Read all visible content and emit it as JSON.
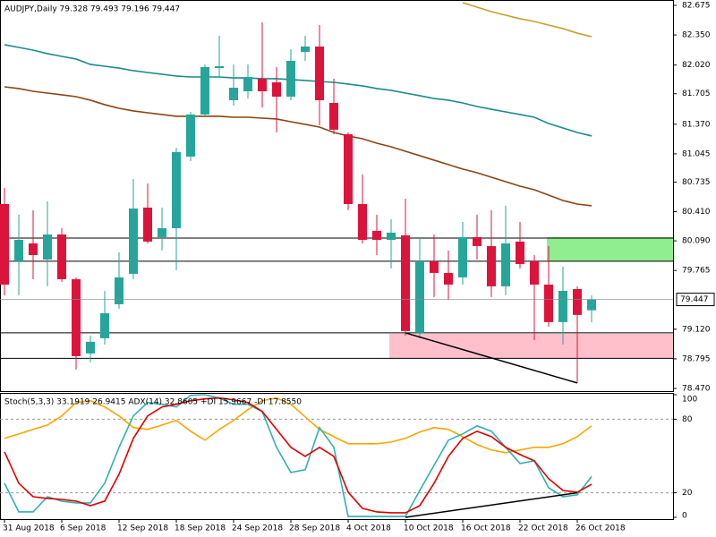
{
  "chart_data": [
    {
      "type": "candlestick",
      "title": "AUDJPY,Daily  79.328 79.493 79.196 79.447",
      "ylim": [
        78.47,
        82.675
      ],
      "yticks": [
        82.675,
        {
          "value": 82.35,
          "label": "82.350"
        },
        {
          "value": 82.02,
          "label": "82.020"
        },
        81.705,
        {
          "value": 81.37,
          "label": "81.370"
        },
        81.045,
        80.735,
        {
          "value": 80.41,
          "label": "80.410"
        },
        {
          "value": 80.09,
          "label": "80.090"
        },
        79.765,
        {
          "value": 79.12,
          "label": "79.120"
        },
        78.795,
        {
          "value": 78.47,
          "label": "78.470"
        }
      ],
      "last_price": 79.447,
      "up_color": "#26a69a",
      "down_color": "#dc143c",
      "open": [
        80.494,
        79.866,
        80.062,
        79.885,
        80.16,
        79.669,
        78.854,
        79.021,
        79.394,
        79.728,
        80.455,
        80.131,
        80.229,
        81.015,
        81.477,
        81.987,
        81.634,
        81.732,
        81.87,
        81.83,
        81.673,
        82.164,
        82.223,
        81.604,
        81.261,
        80.494,
        80.2,
        80.101,
        80.151,
        79.08,
        79.866,
        79.738,
        79.689,
        80.131,
        80.033,
        79.591,
        80.082,
        79.866,
        79.61,
        79.198,
        79.561,
        79.328
      ],
      "high": [
        80.671,
        80.377,
        80.426,
        80.524,
        80.229,
        79.689,
        79.051,
        79.541,
        79.964,
        80.769,
        80.72,
        80.455,
        81.113,
        81.506,
        82.027,
        82.341,
        82.027,
        82.027,
        82.488,
        81.997,
        82.194,
        82.341,
        82.459,
        81.87,
        81.28,
        80.819,
        80.377,
        80.327,
        80.553,
        80.131,
        80.16,
        79.984,
        80.298,
        80.377,
        80.426,
        80.475,
        80.298,
        79.934,
        80.033,
        79.807,
        79.591,
        79.493
      ],
      "low": [
        79.492,
        79.492,
        79.669,
        79.591,
        79.64,
        78.677,
        78.756,
        78.952,
        79.345,
        79.669,
        80.062,
        79.984,
        79.767,
        80.966,
        81.457,
        81.899,
        81.575,
        81.653,
        81.555,
        81.28,
        81.634,
        82.066,
        81.359,
        81.261,
        80.426,
        80.062,
        79.934,
        79.787,
        79.051,
        79.021,
        79.473,
        79.443,
        79.61,
        79.885,
        79.473,
        79.492,
        79.787,
        79.001,
        79.149,
        78.952,
        78.53,
        79.196
      ],
      "close": [
        79.61,
        80.101,
        79.934,
        80.16,
        79.669,
        78.824,
        78.982,
        79.296,
        79.689,
        80.445,
        80.082,
        80.229,
        81.064,
        81.477,
        81.997,
        82.007,
        81.771,
        81.889,
        81.732,
        81.673,
        82.066,
        82.223,
        81.634,
        81.31,
        80.494,
        80.101,
        80.101,
        80.18,
        79.1,
        79.866,
        79.738,
        79.61,
        80.131,
        80.033,
        79.591,
        80.062,
        79.836,
        79.61,
        79.198,
        79.541,
        79.277,
        79.447
      ],
      "series": [
        {
          "color": "#c8a02a",
          "values": [
            null,
            null,
            null,
            null,
            null,
            null,
            null,
            null,
            null,
            null,
            null,
            null,
            null,
            null,
            null,
            null,
            null,
            null,
            null,
            null,
            null,
            null,
            null,
            null,
            null,
            null,
            null,
            null,
            null,
            null,
            null,
            null,
            82.704,
            82.655,
            82.606,
            82.567,
            82.528,
            82.498,
            82.459,
            82.42,
            82.37,
            82.331
          ]
        },
        {
          "color": "#1a8c8c",
          "values": [
            82.243,
            82.213,
            82.184,
            82.145,
            82.115,
            82.086,
            82.027,
            82.007,
            81.987,
            81.958,
            81.938,
            81.919,
            81.899,
            81.889,
            81.889,
            81.889,
            81.879,
            81.879,
            81.87,
            81.87,
            81.86,
            81.85,
            81.84,
            81.83,
            81.811,
            81.791,
            81.762,
            81.742,
            81.712,
            81.683,
            81.653,
            81.634,
            81.604,
            81.565,
            81.535,
            81.506,
            81.477,
            81.447,
            81.378,
            81.329,
            81.28,
            81.241
          ]
        },
        {
          "color": "#8b4513",
          "values": [
            81.781,
            81.762,
            81.732,
            81.712,
            81.693,
            81.673,
            81.634,
            81.585,
            81.545,
            81.516,
            81.496,
            81.477,
            81.457,
            81.457,
            81.457,
            81.457,
            81.447,
            81.447,
            81.437,
            81.428,
            81.398,
            81.369,
            81.339,
            81.28,
            81.241,
            81.211,
            81.162,
            81.123,
            81.074,
            81.025,
            80.976,
            80.927,
            80.878,
            80.838,
            80.789,
            80.74,
            80.69,
            80.651,
            80.592,
            80.533,
            80.494,
            80.475
          ]
        }
      ],
      "levels": [
        80.121,
        79.866,
        79.08,
        78.8
      ],
      "zones": [
        {
          "start": 38,
          "low": 79.866,
          "high": 80.131,
          "color": "#90ee90"
        },
        {
          "start": 27,
          "low": 78.8,
          "high": 79.07,
          "color": "#ffc0cb"
        }
      ],
      "trendline": {
        "x": [
          28,
          40
        ],
        "y": [
          79.08,
          78.53
        ]
      }
    },
    {
      "type": "line",
      "title": "Stoch(5,3,3) 33.1919 26.9415  ADX(14) 32.8605 +DI 15.9667 -DI 17.8550",
      "ylim": [
        0,
        100
      ],
      "yticks": [
        0,
        20,
        80,
        100
      ],
      "levels": [
        20,
        80
      ],
      "categories": [
        "31 Aug 2018",
        null,
        null,
        null,
        "6 Sep 2018",
        null,
        null,
        null,
        "12 Sep 2018",
        null,
        null,
        null,
        "18 Sep 2018",
        null,
        null,
        null,
        "24 Sep 2018",
        null,
        null,
        null,
        "28 Sep 2018",
        null,
        null,
        null,
        "4 Oct 2018",
        null,
        null,
        null,
        "10 Oct 2018",
        null,
        null,
        null,
        "16 Oct 2018",
        null,
        null,
        null,
        "22 Oct 2018",
        null,
        null,
        null,
        "26 Oct 2018",
        null
      ],
      "series": [
        {
          "color": "#ffa500",
          "values": [
            64.4,
            68.0,
            71.7,
            75.3,
            82.7,
            93.6,
            95.1,
            90.0,
            82.7,
            73.2,
            71.7,
            75.3,
            79.0,
            70.2,
            62.9,
            71.7,
            79.0,
            87.8,
            95.1,
            97.3,
            92.2,
            81.9,
            71.7,
            65.8,
            60.0,
            60.0,
            60.0,
            61.4,
            64.4,
            69.5,
            73.2,
            71.7,
            65.8,
            59.3,
            54.9,
            52.7,
            54.9,
            57.1,
            57.1,
            60.0,
            65.8,
            74.6
          ]
        },
        {
          "color": "#30b0b0",
          "values": [
            27.8,
            4.4,
            4.4,
            16.8,
            13.2,
            11.7,
            11.7,
            27.8,
            57.1,
            82.7,
            93.6,
            92.2,
            90.0,
            99.5,
            100,
            97.3,
            92.2,
            92.2,
            86.3,
            57.1,
            36.6,
            38.8,
            73.2,
            57.1,
            0.7,
            0.7,
            0.7,
            0.7,
            0.7,
            21.9,
            42.4,
            62.9,
            68.0,
            74.6,
            70.2,
            57.1,
            43.9,
            46.1,
            24.1,
            16.8,
            18.3,
            33.19
          ]
        },
        {
          "color": "#e00000",
          "values": [
            53.4,
            27.8,
            16.8,
            15.4,
            14.6,
            13.2,
            9.5,
            13.2,
            35.1,
            64.4,
            82.7,
            90.0,
            92.2,
            95.1,
            96.6,
            97.3,
            95.8,
            93.6,
            86.3,
            71.7,
            57.1,
            49.7,
            57.1,
            49.7,
            20.5,
            7.3,
            4.4,
            3.7,
            3.7,
            9.5,
            27.8,
            49.7,
            64.4,
            70.2,
            65.8,
            57.1,
            51.2,
            46.1,
            31.5,
            21.9,
            20.5,
            26.94
          ]
        }
      ],
      "trendline": {
        "x": [
          28,
          40
        ],
        "y": [
          0,
          20
        ]
      }
    }
  ]
}
